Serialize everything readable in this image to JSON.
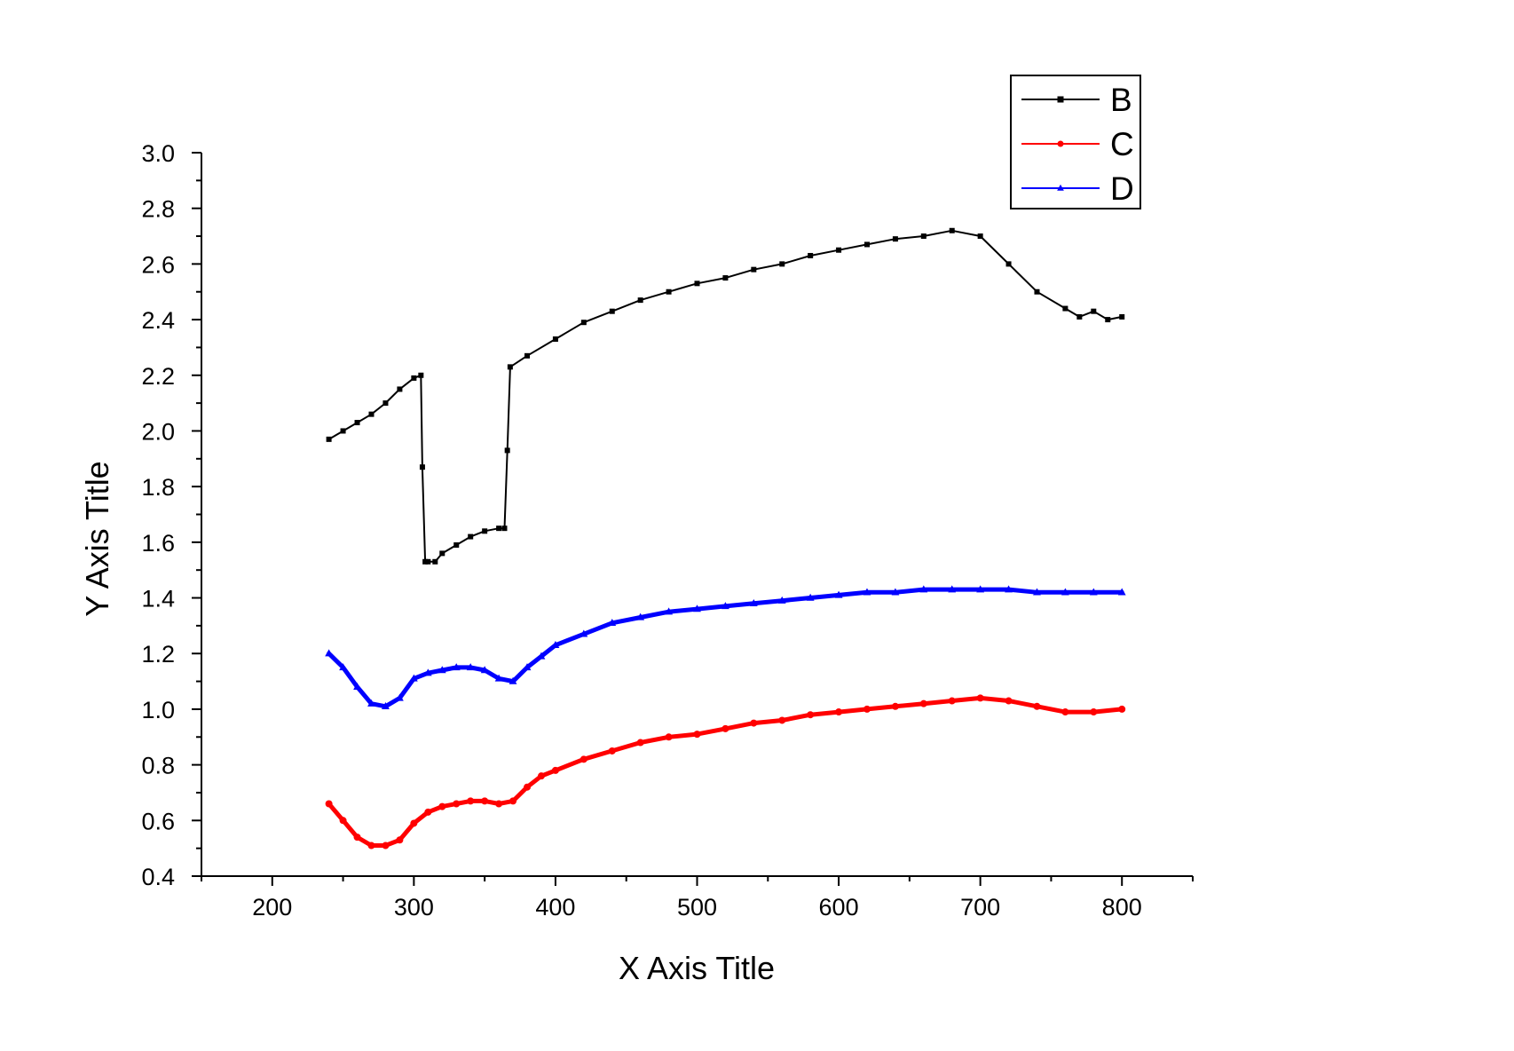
{
  "chart_data": {
    "type": "line",
    "xlabel": "X Axis Title",
    "ylabel": "Y Axis Title",
    "xlim": [
      150,
      850
    ],
    "ylim": [
      0.4,
      3.0
    ],
    "xticks": [
      "200",
      "300",
      "400",
      "500",
      "600",
      "700",
      "800"
    ],
    "yticks": [
      "0.4",
      "0.6",
      "0.8",
      "1.0",
      "1.2",
      "1.4",
      "1.6",
      "1.8",
      "2.0",
      "2.2",
      "2.4",
      "2.6",
      "2.8",
      "3.0"
    ],
    "grid": false,
    "legend_position": "top-right",
    "series": [
      {
        "name": "B",
        "color": "#000000",
        "marker": "square",
        "x": [
          240,
          250,
          260,
          270,
          280,
          290,
          300,
          305,
          306,
          308,
          310,
          315,
          320,
          330,
          340,
          350,
          360,
          364,
          366,
          368,
          380,
          400,
          420,
          440,
          460,
          480,
          500,
          520,
          540,
          560,
          580,
          600,
          620,
          640,
          660,
          680,
          700,
          720,
          740,
          760,
          770,
          780,
          790,
          800
        ],
        "y": [
          1.97,
          2.0,
          2.03,
          2.06,
          2.1,
          2.15,
          2.19,
          2.2,
          1.87,
          1.53,
          1.53,
          1.53,
          1.56,
          1.59,
          1.62,
          1.64,
          1.65,
          1.65,
          1.93,
          2.23,
          2.27,
          2.33,
          2.39,
          2.43,
          2.47,
          2.5,
          2.53,
          2.55,
          2.58,
          2.6,
          2.63,
          2.65,
          2.67,
          2.69,
          2.7,
          2.72,
          2.7,
          2.6,
          2.5,
          2.44,
          2.41,
          2.43,
          2.4,
          2.41
        ]
      },
      {
        "name": "C",
        "color": "#ff0000",
        "marker": "circle",
        "x": [
          240,
          250,
          260,
          270,
          280,
          290,
          300,
          310,
          320,
          330,
          340,
          350,
          360,
          370,
          380,
          390,
          400,
          420,
          440,
          460,
          480,
          500,
          520,
          540,
          560,
          580,
          600,
          620,
          640,
          660,
          680,
          700,
          720,
          740,
          760,
          780,
          800
        ],
        "y": [
          0.66,
          0.6,
          0.54,
          0.51,
          0.51,
          0.53,
          0.59,
          0.63,
          0.65,
          0.66,
          0.67,
          0.67,
          0.66,
          0.67,
          0.72,
          0.76,
          0.78,
          0.82,
          0.85,
          0.88,
          0.9,
          0.91,
          0.93,
          0.95,
          0.96,
          0.98,
          0.99,
          1.0,
          1.01,
          1.02,
          1.03,
          1.04,
          1.03,
          1.01,
          0.99,
          0.99,
          1.0
        ]
      },
      {
        "name": "D",
        "color": "#0000ff",
        "marker": "triangle",
        "x": [
          240,
          250,
          260,
          270,
          280,
          290,
          300,
          310,
          320,
          330,
          340,
          350,
          360,
          370,
          380,
          390,
          400,
          420,
          440,
          460,
          480,
          500,
          520,
          540,
          560,
          580,
          600,
          620,
          640,
          660,
          680,
          700,
          720,
          740,
          760,
          780,
          800
        ],
        "y": [
          1.2,
          1.15,
          1.08,
          1.02,
          1.01,
          1.04,
          1.11,
          1.13,
          1.14,
          1.15,
          1.15,
          1.14,
          1.11,
          1.1,
          1.15,
          1.19,
          1.23,
          1.27,
          1.31,
          1.33,
          1.35,
          1.36,
          1.37,
          1.38,
          1.39,
          1.4,
          1.41,
          1.42,
          1.42,
          1.43,
          1.43,
          1.43,
          1.43,
          1.42,
          1.42,
          1.42,
          1.42
        ]
      }
    ]
  }
}
